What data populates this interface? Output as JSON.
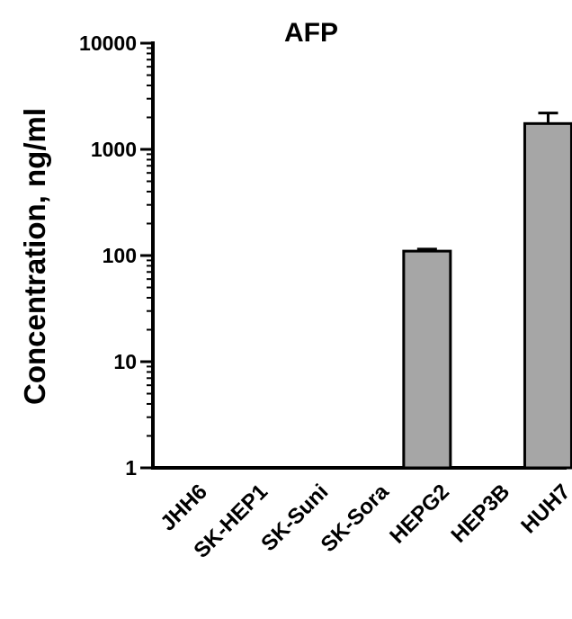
{
  "chart_data": {
    "type": "bar",
    "title": "AFP",
    "ylabel": "Concentration, ng/ml",
    "xlabel": "",
    "yscale": "log",
    "ylim": [
      1,
      10000
    ],
    "yticks": [
      {
        "value": 1,
        "label": "1"
      },
      {
        "value": 10,
        "label": "10"
      },
      {
        "value": 100,
        "label": "100"
      },
      {
        "value": 1000,
        "label": "1000"
      },
      {
        "value": 10000,
        "label": "10000"
      }
    ],
    "categories": [
      "JHH6",
      "SK-HEP1",
      "SK-Suni",
      "SK-Sora",
      "HEPG2",
      "HEP3B",
      "HUH7"
    ],
    "values": [
      null,
      null,
      null,
      null,
      110,
      null,
      1750
    ],
    "error_upper": [
      null,
      null,
      null,
      null,
      115,
      null,
      2200
    ],
    "bar_color": "#a6a6a6",
    "edge_color": "#000000",
    "grid": false,
    "legend": "none"
  }
}
